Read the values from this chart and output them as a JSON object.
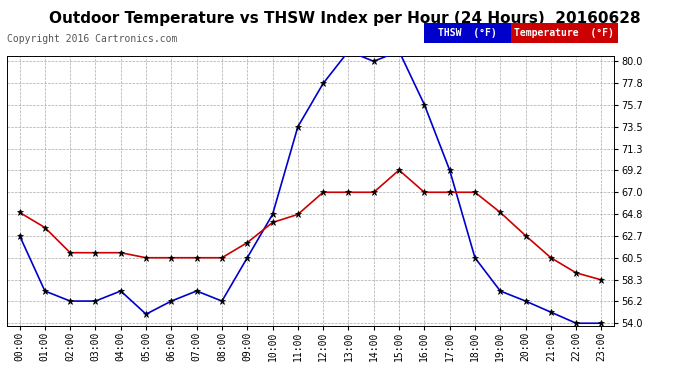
{
  "title": "Outdoor Temperature vs THSW Index per Hour (24 Hours)  20160628",
  "copyright": "Copyright 2016 Cartronics.com",
  "hours": [
    "00:00",
    "01:00",
    "02:00",
    "03:00",
    "04:00",
    "05:00",
    "06:00",
    "07:00",
    "08:00",
    "09:00",
    "10:00",
    "11:00",
    "12:00",
    "13:00",
    "14:00",
    "15:00",
    "16:00",
    "17:00",
    "18:00",
    "19:00",
    "20:00",
    "21:00",
    "22:00",
    "23:00"
  ],
  "thsw": [
    62.7,
    57.2,
    56.2,
    56.2,
    57.2,
    54.9,
    56.2,
    57.2,
    56.2,
    60.5,
    64.8,
    73.5,
    77.8,
    81.0,
    80.0,
    81.0,
    75.7,
    69.2,
    60.5,
    57.2,
    56.2,
    55.1,
    54.0,
    54.0
  ],
  "temperature": [
    65.0,
    63.5,
    61.0,
    61.0,
    61.0,
    60.5,
    60.5,
    60.5,
    60.5,
    62.0,
    64.0,
    64.8,
    67.0,
    67.0,
    67.0,
    69.2,
    67.0,
    67.0,
    67.0,
    65.0,
    62.7,
    60.5,
    59.0,
    58.3
  ],
  "thsw_color": "#0000cc",
  "temp_color": "#cc0000",
  "marker_color": "#000000",
  "bg_color": "#ffffff",
  "grid_color": "#aaaaaa",
  "ylim_min": 54.0,
  "ylim_max": 80.0,
  "yticks": [
    54.0,
    56.2,
    58.3,
    60.5,
    62.7,
    64.8,
    67.0,
    69.2,
    71.3,
    73.5,
    75.7,
    77.8,
    80.0
  ],
  "legend_thsw_bg": "#0000cc",
  "legend_temp_bg": "#cc0000",
  "title_fontsize": 11,
  "tick_fontsize": 7,
  "copyright_fontsize": 7
}
